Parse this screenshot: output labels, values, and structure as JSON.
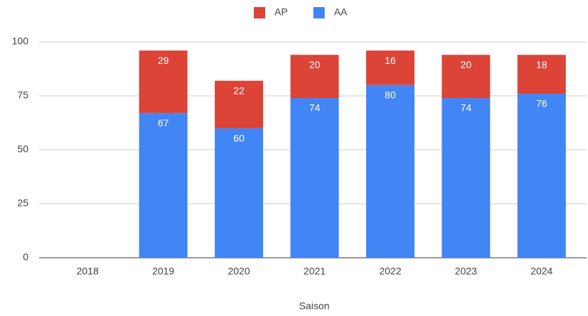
{
  "chart_data": {
    "type": "stacked_bar",
    "x_label": "Saison",
    "categories": [
      "2018",
      "2019",
      "2020",
      "2021",
      "2022",
      "2023",
      "2024"
    ],
    "series": [
      {
        "name": "AP",
        "color": "#db4437",
        "values": [
          null,
          29,
          22,
          20,
          16,
          20,
          18
        ]
      },
      {
        "name": "AA",
        "color": "#4285f4",
        "values": [
          null,
          67,
          60,
          74,
          80,
          74,
          76
        ]
      }
    ],
    "ylim": [
      0,
      100
    ],
    "yticks": [
      0,
      25,
      50,
      75,
      100
    ],
    "grid": true,
    "legend": "top"
  }
}
